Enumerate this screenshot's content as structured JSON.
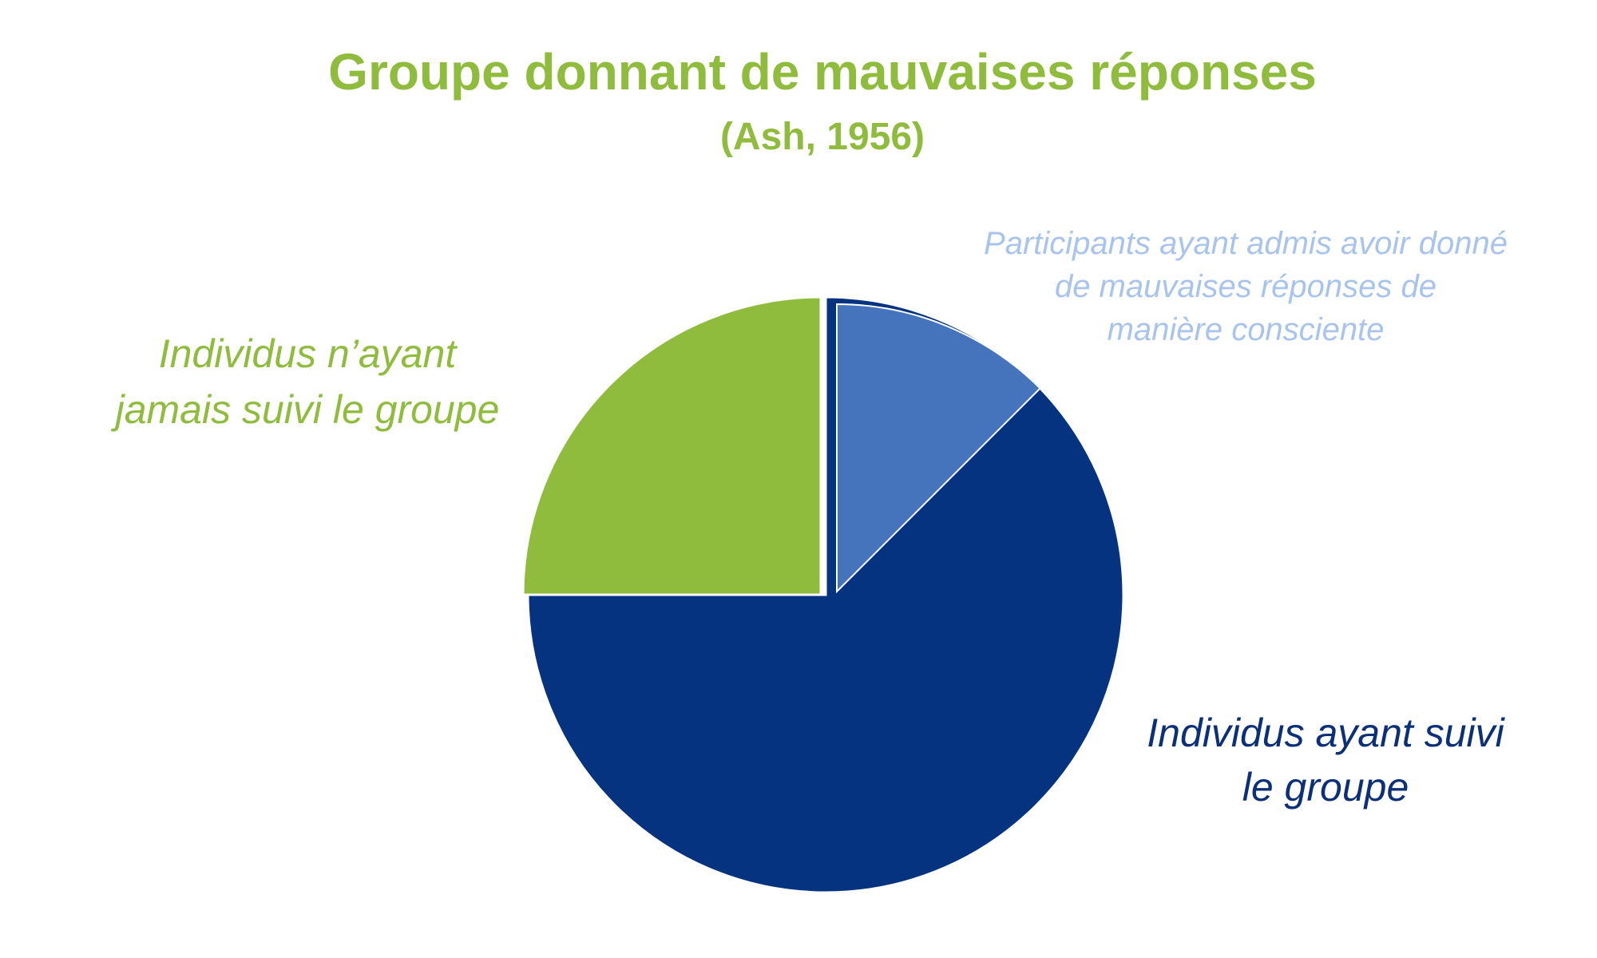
{
  "chart_data": {
    "type": "pie",
    "title": "Groupe donnant de mauvaises réponses",
    "subtitle": "(Ash, 1956)",
    "total_percent": 100,
    "slices": [
      {
        "label_lines": [
          "Participants ayant admis avoir donné",
          "de mauvaises réponses de",
          "manière consciente"
        ],
        "value": 12.5,
        "color": "#4674bc",
        "label_color": "#a8c4ee",
        "sub_slice_of": "Individus ayant suivi le groupe"
      },
      {
        "label_lines": [
          "Individus ayant suivi",
          "le groupe"
        ],
        "value": 62.5,
        "color": "#063380",
        "label_color": "#0b2f78"
      },
      {
        "label_lines": [
          "Individus n’ayant",
          "jamais suivi le groupe"
        ],
        "value": 25,
        "color": "#8fbc3d",
        "label_color": "#8fbc3d"
      }
    ],
    "start_angle": "12 o'clock",
    "direction": "clockwise",
    "legend": "none"
  }
}
